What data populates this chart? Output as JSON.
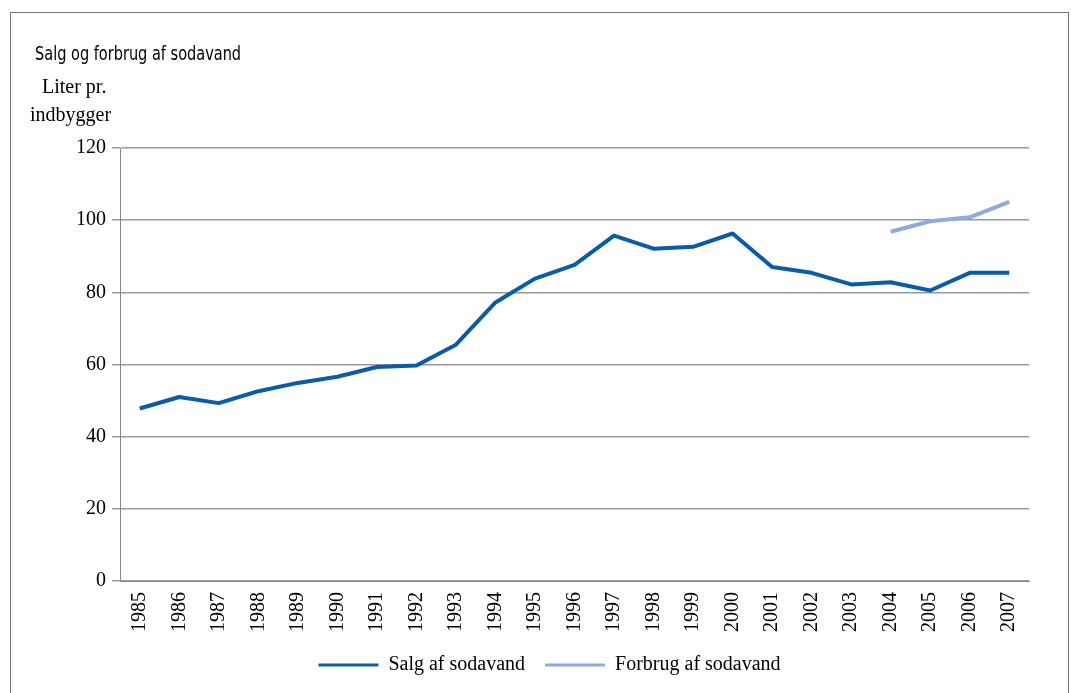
{
  "chart_data": {
    "type": "line",
    "title": "Salg og forbrug af sodavand",
    "ylabel": "Liter pr. indbygger",
    "categories": [
      "1985",
      "1986",
      "1987",
      "1988",
      "1989",
      "1990",
      "1991",
      "1992",
      "1993",
      "1994",
      "1995",
      "1996",
      "1997",
      "1998",
      "1999",
      "2000",
      "2001",
      "2002",
      "2003",
      "2004",
      "2005",
      "2006",
      "2007"
    ],
    "series": [
      {
        "name": "Salg af sodavand",
        "color": "#0a5ca8",
        "values": [
          47.8,
          51.0,
          49.3,
          52.6,
          54.9,
          56.6,
          59.3,
          59.7,
          65.5,
          77.2,
          83.8,
          87.6,
          95.7,
          92.1,
          92.6,
          96.3,
          87.0,
          85.4,
          82.2,
          82.8,
          80.5,
          85.4,
          85.4
        ]
      },
      {
        "name": "Forbrug af sodavand",
        "color": "#8faadc",
        "values": [
          null,
          null,
          null,
          null,
          null,
          null,
          null,
          null,
          null,
          null,
          null,
          null,
          null,
          null,
          null,
          null,
          null,
          null,
          null,
          96.8,
          99.7,
          100.8,
          105.1
        ]
      }
    ],
    "ylim": [
      0,
      120
    ],
    "yticks": [
      0,
      20,
      40,
      60,
      80,
      100,
      120
    ],
    "grid": "y",
    "legend": "bottom",
    "marker": "none",
    "line_style": "solid"
  }
}
